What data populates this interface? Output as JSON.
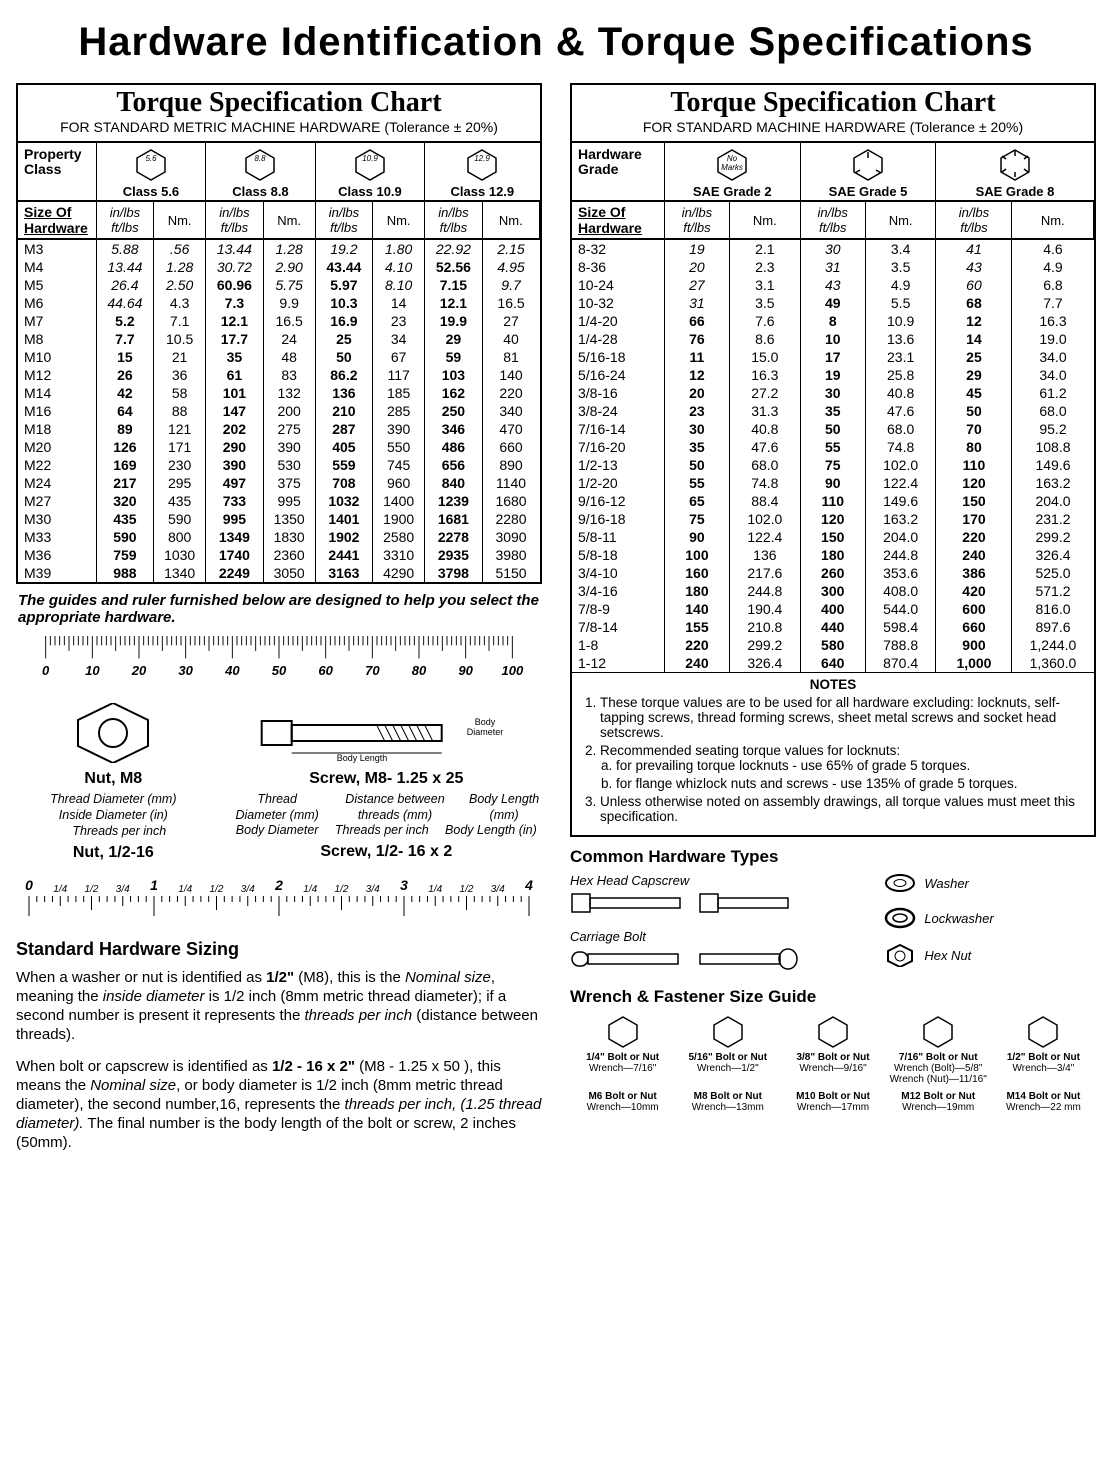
{
  "title": "Hardware Identification  &   Torque Specifications",
  "metric_chart": {
    "title": "Torque Specification Chart",
    "subtitle": "FOR STANDARD METRIC MACHINE HARDWARE (Tolerance ± 20%)",
    "prop_label": "Property\nClass",
    "size_label": "Size Of\nHardware",
    "unit1": "in/lbs\nft/lbs",
    "unit2": "Nm.",
    "grades": [
      {
        "mark": "5.6",
        "label": "Class 5.6"
      },
      {
        "mark": "8.8",
        "label": "Class 8.8"
      },
      {
        "mark": "10.9",
        "label": "Class 10.9"
      },
      {
        "mark": "12.9",
        "label": "Class 12.9"
      }
    ],
    "rows": [
      [
        "M3",
        "5.88",
        ".56",
        "13.44",
        "1.28",
        "19.2",
        "1.80",
        "22.92",
        "2.15"
      ],
      [
        "M4",
        "13.44",
        "1.28",
        "30.72",
        "2.90",
        "43.44",
        "4.10",
        "52.56",
        "4.95"
      ],
      [
        "M5",
        "26.4",
        "2.50",
        "60.96",
        "5.75",
        "5.97",
        "8.10",
        "7.15",
        "9.7"
      ],
      [
        "M6",
        "44.64",
        "4.3",
        "7.3",
        "9.9",
        "10.3",
        "14",
        "12.1",
        "16.5"
      ],
      [
        "M7",
        "5.2",
        "7.1",
        "12.1",
        "16.5",
        "16.9",
        "23",
        "19.9",
        "27"
      ],
      [
        "M8",
        "7.7",
        "10.5",
        "17.7",
        "24",
        "25",
        "34",
        "29",
        "40"
      ],
      [
        "M10",
        "15",
        "21",
        "35",
        "48",
        "50",
        "67",
        "59",
        "81"
      ],
      [
        "M12",
        "26",
        "36",
        "61",
        "83",
        "86.2",
        "117",
        "103",
        "140"
      ],
      [
        "M14",
        "42",
        "58",
        "101",
        "132",
        "136",
        "185",
        "162",
        "220"
      ],
      [
        "M16",
        "64",
        "88",
        "147",
        "200",
        "210",
        "285",
        "250",
        "340"
      ],
      [
        "M18",
        "89",
        "121",
        "202",
        "275",
        "287",
        "390",
        "346",
        "470"
      ],
      [
        "M20",
        "126",
        "171",
        "290",
        "390",
        "405",
        "550",
        "486",
        "660"
      ],
      [
        "M22",
        "169",
        "230",
        "390",
        "530",
        "559",
        "745",
        "656",
        "890"
      ],
      [
        "M24",
        "217",
        "295",
        "497",
        "375",
        "708",
        "960",
        "840",
        "1140"
      ],
      [
        "M27",
        "320",
        "435",
        "733",
        "995",
        "1032",
        "1400",
        "1239",
        "1680"
      ],
      [
        "M30",
        "435",
        "590",
        "995",
        "1350",
        "1401",
        "1900",
        "1681",
        "2280"
      ],
      [
        "M33",
        "590",
        "800",
        "1349",
        "1830",
        "1902",
        "2580",
        "2278",
        "3090"
      ],
      [
        "M36",
        "759",
        "1030",
        "1740",
        "2360",
        "2441",
        "3310",
        "2935",
        "3980"
      ],
      [
        "M39",
        "988",
        "1340",
        "2249",
        "3050",
        "3163",
        "4290",
        "3798",
        "5150"
      ]
    ]
  },
  "sae_chart": {
    "title": "Torque Specification Chart",
    "subtitle": "FOR STANDARD MACHINE HARDWARE (Tolerance ± 20%)",
    "prop_label": "Hardware\nGrade",
    "size_label": "Size Of\nHardware",
    "unit1": "in/lbs\nft/lbs",
    "unit2": "Nm.",
    "grades": [
      {
        "mark": "No\nMarks",
        "label": "SAE Grade 2"
      },
      {
        "mark": "",
        "label": "SAE Grade 5"
      },
      {
        "mark": "",
        "label": "SAE Grade 8"
      }
    ],
    "rows": [
      [
        "8-32",
        "19",
        "2.1",
        "30",
        "3.4",
        "41",
        "4.6"
      ],
      [
        "8-36",
        "20",
        "2.3",
        "31",
        "3.5",
        "43",
        "4.9"
      ],
      [
        "10-24",
        "27",
        "3.1",
        "43",
        "4.9",
        "60",
        "6.8"
      ],
      [
        "10-32",
        "31",
        "3.5",
        "49",
        "5.5",
        "68",
        "7.7"
      ],
      [
        "1/4-20",
        "66",
        "7.6",
        "8",
        "10.9",
        "12",
        "16.3"
      ],
      [
        "1/4-28",
        "76",
        "8.6",
        "10",
        "13.6",
        "14",
        "19.0"
      ],
      [
        "5/16-18",
        "11",
        "15.0",
        "17",
        "23.1",
        "25",
        "34.0"
      ],
      [
        "5/16-24",
        "12",
        "16.3",
        "19",
        "25.8",
        "29",
        "34.0"
      ],
      [
        "3/8-16",
        "20",
        "27.2",
        "30",
        "40.8",
        "45",
        "61.2"
      ],
      [
        "3/8-24",
        "23",
        "31.3",
        "35",
        "47.6",
        "50",
        "68.0"
      ],
      [
        "7/16-14",
        "30",
        "40.8",
        "50",
        "68.0",
        "70",
        "95.2"
      ],
      [
        "7/16-20",
        "35",
        "47.6",
        "55",
        "74.8",
        "80",
        "108.8"
      ],
      [
        "1/2-13",
        "50",
        "68.0",
        "75",
        "102.0",
        "110",
        "149.6"
      ],
      [
        "1/2-20",
        "55",
        "74.8",
        "90",
        "122.4",
        "120",
        "163.2"
      ],
      [
        "9/16-12",
        "65",
        "88.4",
        "110",
        "149.6",
        "150",
        "204.0"
      ],
      [
        "9/16-18",
        "75",
        "102.0",
        "120",
        "163.2",
        "170",
        "231.2"
      ],
      [
        "5/8-11",
        "90",
        "122.4",
        "150",
        "204.0",
        "220",
        "299.2"
      ],
      [
        "5/8-18",
        "100",
        "136",
        "180",
        "244.8",
        "240",
        "326.4"
      ],
      [
        "3/4-10",
        "160",
        "217.6",
        "260",
        "353.6",
        "386",
        "525.0"
      ],
      [
        "3/4-16",
        "180",
        "244.8",
        "300",
        "408.0",
        "420",
        "571.2"
      ],
      [
        "7/8-9",
        "140",
        "190.4",
        "400",
        "544.0",
        "600",
        "816.0"
      ],
      [
        "7/8-14",
        "155",
        "210.8",
        "440",
        "598.4",
        "660",
        "897.6"
      ],
      [
        "1-8",
        "220",
        "299.2",
        "580",
        "788.8",
        "900",
        "1,244.0"
      ],
      [
        "1-12",
        "240",
        "326.4",
        "640",
        "870.4",
        "1,000",
        "1,360.0"
      ]
    ],
    "notes_title": "NOTES",
    "notes": [
      "These torque values are to be used for all hardware excluding: locknuts, self-tapping screws, thread forming screws, sheet metal screws and socket head setscrews.",
      "Recommended seating torque values for locknuts:",
      "Unless otherwise noted on assembly drawings, all torque values must meet this specification."
    ],
    "notes_sub": [
      "for prevailing torque locknuts - use 65% of grade 5 torques.",
      "for flange whizlock nuts and screws - use 135% of grade 5 torques."
    ]
  },
  "guide_note": "The guides and ruler furnished below are designed to help you select the appropriate hardware.",
  "ruler_mm": {
    "labels": [
      "0",
      "10",
      "20",
      "30",
      "40",
      "50",
      "60",
      "70",
      "80",
      "90",
      "100"
    ]
  },
  "ruler_in": {
    "major": [
      "0",
      "1",
      "2",
      "3",
      "4"
    ],
    "minor": [
      "1/4",
      "1/2",
      "3/4"
    ]
  },
  "nutscrew": {
    "nut_metric": "Nut, M8",
    "screw_metric": "Screw, M8- 1.25 x 25",
    "nut_imp": "Nut, 1/2-16",
    "screw_imp": "Screw, 1/2- 16 x 2",
    "body_diam": "Body\nDiameter",
    "body_len": "Body Length",
    "thread_diam_mm": "Thread\nDiameter (mm)",
    "inside_diam_in": "Inside\nDiameter (in)",
    "threads_per_inch": "Threads\nper inch",
    "dist_threads": "Distance between\nthreads (mm)",
    "body_len_mm": "Body\nLength (mm)",
    "body_diam2": "Body\nDiameter",
    "body_len_in": "Body\nLength (in)"
  },
  "sizing": {
    "title": "Standard Hardware Sizing",
    "p1a": "When a washer or nut is identified as ",
    "p1b": "1/2\"",
    "p1c": " (M8), this is the ",
    "p1d": "Nominal size",
    "p1e": ", meaning the ",
    "p1f": "inside diameter",
    "p1g": " is 1/2 inch (8mm metric thread diameter); if a second number is present it represents the ",
    "p1h": "threads per inch",
    "p1i": " (distance between threads).",
    "p2a": "When bolt or capscrew is identified as ",
    "p2b": "1/2 - 16 x 2\"",
    "p2c": " (M8 - 1.25 x 50 ), this means the ",
    "p2d": "Nominal size",
    "p2e": ", or body diameter is 1/2 inch (8mm metric thread diameter), the second number,16, represents the ",
    "p2f": "threads per inch, (1.25 thread diameter).",
    "p2g": " The final number is the body length of the bolt or screw, 2 inches (50mm)."
  },
  "hwtypes": {
    "title": "Common Hardware Types",
    "items": [
      "Hex Head Capscrew",
      "Carriage Bolt",
      "Washer",
      "Lockwasher",
      "Hex Nut"
    ]
  },
  "wrench": {
    "title": "Wrench & Fastener Size Guide",
    "row1": [
      {
        "t": "1/4\" Bolt or Nut",
        "w": "Wrench—7/16\""
      },
      {
        "t": "5/16\" Bolt or Nut",
        "w": "Wrench—1/2\""
      },
      {
        "t": "3/8\" Bolt or Nut",
        "w": "Wrench—9/16\""
      },
      {
        "t": "7/16\" Bolt or Nut",
        "w": "Wrench (Bolt)—5/8\"\nWrench (Nut)—11/16\""
      },
      {
        "t": "1/2\" Bolt or Nut",
        "w": "Wrench—3/4\""
      }
    ],
    "row2": [
      {
        "t": "M6 Bolt or Nut",
        "w": "Wrench—10mm"
      },
      {
        "t": "M8 Bolt or Nut",
        "w": "Wrench—13mm"
      },
      {
        "t": "M10 Bolt or Nut",
        "w": "Wrench—17mm"
      },
      {
        "t": "M12 Bolt or Nut",
        "w": "Wrench—19mm"
      },
      {
        "t": "M14 Bolt or Nut",
        "w": "Wrench—22 mm"
      }
    ]
  }
}
